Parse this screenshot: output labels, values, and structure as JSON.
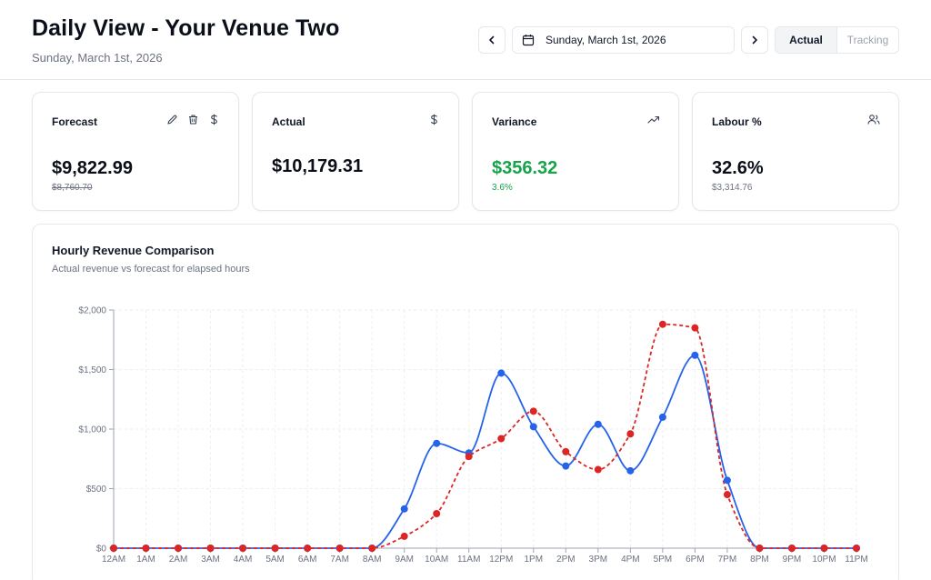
{
  "header": {
    "title": "Daily View - Your Venue Two",
    "subtitle": "Sunday, March 1st, 2026",
    "date_picker": {
      "value": "Sunday, March 1st, 2026",
      "icon": "calendar-icon"
    },
    "prev_icon": "chevron-left-icon",
    "next_icon": "chevron-right-icon",
    "view_toggle": {
      "actual_label": "Actual",
      "tracking_label": "Tracking",
      "selected": "Actual"
    }
  },
  "cards": {
    "forecast": {
      "title": "Forecast",
      "value": "$9,822.99",
      "sub": "$8,760.70",
      "icons": [
        "pencil-icon",
        "trash-icon",
        "dollar-icon"
      ]
    },
    "actual": {
      "title": "Actual",
      "value": "$10,179.31",
      "icons": [
        "dollar-icon"
      ]
    },
    "variance": {
      "title": "Variance",
      "value": "$356.32",
      "sub": "3.6%",
      "icons": [
        "trending-up-icon"
      ],
      "color": "#16a34a"
    },
    "labour": {
      "title": "Labour %",
      "value": "32.6%",
      "sub": "$3,314.76",
      "icons": [
        "users-icon"
      ]
    }
  },
  "chart": {
    "title": "Hourly Revenue Comparison",
    "subtitle": "Actual revenue vs forecast for elapsed hours"
  },
  "chart_data": {
    "type": "line",
    "title": "Hourly Revenue Comparison",
    "subtitle": "Actual revenue vs forecast for elapsed hours",
    "categories": [
      "12AM",
      "1AM",
      "2AM",
      "3AM",
      "4AM",
      "5AM",
      "6AM",
      "7AM",
      "8AM",
      "9AM",
      "10AM",
      "11AM",
      "12PM",
      "1PM",
      "2PM",
      "3PM",
      "4PM",
      "5PM",
      "6PM",
      "7PM",
      "8PM",
      "9PM",
      "10PM",
      "11PM"
    ],
    "y_ticks": [
      "$0",
      "$500",
      "$1,000",
      "$1,500",
      "$2,000"
    ],
    "ylim": [
      0,
      2000
    ],
    "grid": true,
    "legend": "none",
    "series": [
      {
        "values": [
          0,
          0,
          0,
          0,
          0,
          0,
          0,
          0,
          0,
          330,
          880,
          800,
          1470,
          1020,
          690,
          1040,
          650,
          1100,
          1620,
          570,
          0,
          0,
          0,
          0
        ],
        "color": "#2563eb",
        "style": "solid"
      },
      {
        "values": [
          0,
          0,
          0,
          0,
          0,
          0,
          0,
          0,
          0,
          100,
          290,
          770,
          920,
          1150,
          810,
          660,
          960,
          1880,
          1850,
          450,
          0,
          0,
          0,
          0
        ],
        "color": "#dc2626",
        "style": "dashed"
      }
    ]
  }
}
